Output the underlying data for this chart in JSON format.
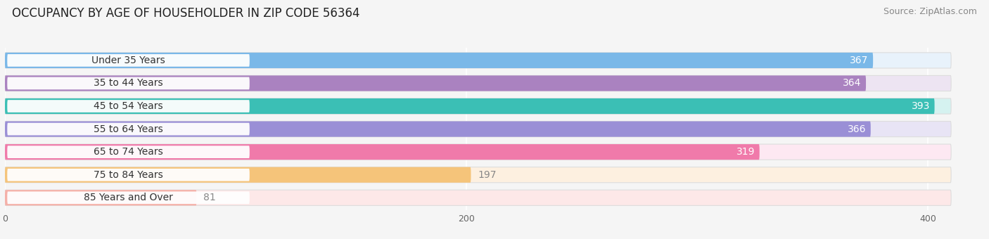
{
  "title": "OCCUPANCY BY AGE OF HOUSEHOLDER IN ZIP CODE 56364",
  "source": "Source: ZipAtlas.com",
  "categories": [
    "Under 35 Years",
    "35 to 44 Years",
    "45 to 54 Years",
    "55 to 64 Years",
    "65 to 74 Years",
    "75 to 84 Years",
    "85 Years and Over"
  ],
  "values": [
    367,
    364,
    393,
    366,
    319,
    197,
    81
  ],
  "bar_colors": [
    "#7ab8e8",
    "#aa82c0",
    "#3bbfb5",
    "#9a8fd6",
    "#f07aaa",
    "#f5c47a",
    "#f5b0a8"
  ],
  "bar_bg_colors": [
    "#e8f2fb",
    "#ede4f2",
    "#d5f2f0",
    "#e8e4f5",
    "#fde8f2",
    "#fdf0e0",
    "#fde8e8"
  ],
  "label_colors": [
    "white",
    "white",
    "white",
    "white",
    "white",
    "dark",
    "dark"
  ],
  "value_label_color_dark": "#888888",
  "xlim_max": 420,
  "xticks": [
    0,
    200,
    400
  ],
  "title_fontsize": 12,
  "source_fontsize": 9,
  "label_fontsize": 10,
  "category_fontsize": 10,
  "bar_height": 0.68,
  "background_color": "#f5f5f5",
  "row_bg_color": "#efefef"
}
